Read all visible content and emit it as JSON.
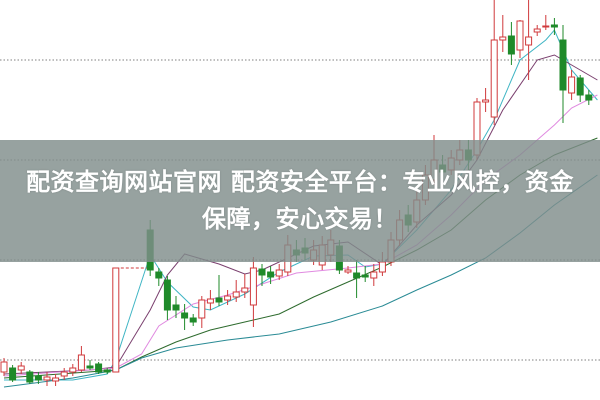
{
  "banner": {
    "line1": "配资查询网站官网 配资安全平台：专业风控，资金",
    "line2": "保障，安心交易！"
  },
  "chart_data": {
    "type": "candlestick",
    "title": "",
    "xlabel": "",
    "ylabel": "",
    "ylim": [
      0,
      40
    ],
    "grid": "horizontal dotted",
    "gridlines": [
      4,
      14,
      24,
      34
    ],
    "colors": {
      "up": "#d0393b",
      "down": "#1f8a2a",
      "ma": [
        "#3fb5c4",
        "#7a3f6e",
        "#e08ae0",
        "#2e6b2e",
        "#2a8b95"
      ],
      "grid": "#999999"
    },
    "candles": [
      [
        2.8,
        3.8,
        4.2,
        2.4
      ],
      [
        3.2,
        2.0,
        3.5,
        1.8
      ],
      [
        3.0,
        3.4,
        3.8,
        2.6
      ],
      [
        2.8,
        1.8,
        3.0,
        1.6
      ],
      [
        2.4,
        2.0,
        2.8,
        1.6
      ],
      [
        2.0,
        2.3,
        2.8,
        1.4
      ],
      [
        1.9,
        2.2,
        2.6,
        1.4
      ],
      [
        2.4,
        2.8,
        3.2,
        2.0
      ],
      [
        2.8,
        3.2,
        3.6,
        2.4
      ],
      [
        3.0,
        4.5,
        5.4,
        2.8
      ],
      [
        3.4,
        3.2,
        4.0,
        3.0
      ],
      [
        3.6,
        2.8,
        3.8,
        2.6
      ],
      [
        3.0,
        2.8,
        3.2,
        2.6
      ],
      [
        2.8,
        13.2,
        13.2,
        2.8
      ],
      null,
      null,
      null,
      [
        17.0,
        13.0,
        18.0,
        12.4
      ],
      [
        12.8,
        12.2,
        13.2,
        11.4
      ],
      [
        12.0,
        9.0,
        12.4,
        8.0
      ],
      [
        9.5,
        9.0,
        10.4,
        8.2
      ],
      [
        8.7,
        8.2,
        9.6,
        7.0
      ],
      [
        8.2,
        7.8,
        8.6,
        7.4
      ],
      [
        8.2,
        10.0,
        10.4,
        7.2
      ],
      [
        9.7,
        10.1,
        11.0,
        9.0
      ],
      [
        10.2,
        9.8,
        12.5,
        9.4
      ],
      [
        10.0,
        10.4,
        11.0,
        9.5
      ],
      [
        10.3,
        10.8,
        12.0,
        9.8
      ],
      [
        10.8,
        11.2,
        12.6,
        10.2
      ],
      [
        9.5,
        13.2,
        14.3,
        7.3
      ],
      [
        13.1,
        12.5,
        13.6,
        11.4
      ],
      [
        12.8,
        12.3,
        13.4,
        11.6
      ],
      [
        12.4,
        13.0,
        13.6,
        12.0
      ],
      [
        12.8,
        15.5,
        16.5,
        12.4
      ],
      [
        15.0,
        14.5,
        16.0,
        13.8
      ],
      [
        15.2,
        14.7,
        16.2,
        14.0
      ],
      [
        14.0,
        15.0,
        16.0,
        13.5
      ],
      [
        13.5,
        15.5,
        16.4,
        13.0
      ],
      [
        14.5,
        16.0,
        17.0,
        13.8
      ],
      [
        15.4,
        13.0,
        16.0,
        12.6
      ],
      [
        12.8,
        13.0,
        13.4,
        12.6
      ],
      [
        12.7,
        12.2,
        14.0,
        10.2
      ],
      [
        12.5,
        12.3,
        13.4,
        11.8
      ],
      [
        12.2,
        12.8,
        13.6,
        11.4
      ],
      [
        12.8,
        13.8,
        14.8,
        12.4
      ],
      [
        13.8,
        16.0,
        16.8,
        13.4
      ],
      [
        16.0,
        18.0,
        19.0,
        15.4
      ],
      [
        18.5,
        17.5,
        19.5,
        16.8
      ],
      [
        17.8,
        20.0,
        21.0,
        17.2
      ],
      [
        20.0,
        22.5,
        23.5,
        19.5
      ],
      [
        22.0,
        24.0,
        26.5,
        21.5
      ],
      [
        23.5,
        22.8,
        24.5,
        22.0
      ],
      [
        23.0,
        24.2,
        25.0,
        22.5
      ],
      [
        24.0,
        25.0,
        26.0,
        23.5
      ],
      [
        25.0,
        24.0,
        26.0,
        23.0
      ],
      [
        24.5,
        29.8,
        30.2,
        24.0
      ],
      [
        29.8,
        30.0,
        31.2,
        28.8
      ],
      [
        28.3,
        36.0,
        40.0,
        27.5
      ],
      [
        36.0,
        36.3,
        38.5,
        34.8
      ],
      [
        36.4,
        34.6,
        37.8,
        33.5
      ],
      [
        35.0,
        37.9,
        38.0,
        34.2
      ],
      [
        35.5,
        36.3,
        40.0,
        32.0
      ],
      [
        36.8,
        37.1,
        37.5,
        36.4
      ],
      [
        37.3,
        37.4,
        38.5,
        37.0
      ],
      [
        37.5,
        37.3,
        38.2,
        36.5
      ],
      [
        36.0,
        31.0,
        37.5,
        27.7
      ],
      [
        30.7,
        32.3,
        33.0,
        30.0
      ],
      [
        32.2,
        30.5,
        32.5,
        29.8
      ],
      [
        30.5,
        30.0,
        31.0,
        29.5
      ]
    ],
    "moving_averages": [
      [
        [
          0,
          2.0
        ],
        [
          8,
          2.0
        ],
        [
          12,
          2.6
        ],
        [
          13,
          4.0
        ],
        [
          17,
          14.5
        ],
        [
          19,
          11.8
        ],
        [
          22,
          9.3
        ],
        [
          24,
          9.0
        ],
        [
          28,
          10.6
        ],
        [
          32,
          12.8
        ],
        [
          36,
          14.4
        ],
        [
          40,
          14.5
        ],
        [
          42,
          13.3
        ],
        [
          44,
          13.6
        ],
        [
          48,
          17.0
        ],
        [
          52,
          21.0
        ],
        [
          55,
          25.0
        ],
        [
          57,
          28.0
        ],
        [
          60,
          34.0
        ],
        [
          63,
          36.0
        ],
        [
          64,
          37.0
        ],
        [
          66,
          33.0
        ],
        [
          68,
          31.0
        ],
        [
          69,
          30.0
        ]
      ],
      [
        [
          0,
          2.6
        ],
        [
          10,
          3.0
        ],
        [
          13,
          3.3
        ],
        [
          17,
          9.0
        ],
        [
          19,
          12.5
        ],
        [
          21,
          14.6
        ],
        [
          25,
          13.6
        ],
        [
          28,
          12.6
        ],
        [
          30,
          13.0
        ],
        [
          36,
          15.4
        ],
        [
          40,
          15.8
        ],
        [
          44,
          13.5
        ],
        [
          48,
          17.5
        ],
        [
          52,
          20.5
        ],
        [
          55,
          24.0
        ],
        [
          58,
          29.0
        ],
        [
          62,
          34.0
        ],
        [
          64,
          34.5
        ],
        [
          66,
          33.5
        ],
        [
          69,
          32.0
        ]
      ],
      [
        [
          0,
          2.4
        ],
        [
          13,
          3.2
        ],
        [
          16,
          4.6
        ],
        [
          18,
          7.4
        ],
        [
          22,
          9.6
        ],
        [
          26,
          10.5
        ],
        [
          30,
          11.6
        ],
        [
          34,
          12.7
        ],
        [
          40,
          13.2
        ],
        [
          44,
          13.6
        ],
        [
          48,
          15.5
        ],
        [
          52,
          18.5
        ],
        [
          56,
          22.0
        ],
        [
          60,
          24.5
        ],
        [
          64,
          27.5
        ],
        [
          66,
          29.2
        ],
        [
          69,
          30.5
        ]
      ],
      [
        [
          0,
          2.2
        ],
        [
          13,
          3.0
        ],
        [
          16,
          4.3
        ],
        [
          20,
          5.8
        ],
        [
          24,
          7.0
        ],
        [
          28,
          7.8
        ],
        [
          32,
          8.6
        ],
        [
          36,
          10.3
        ],
        [
          40,
          11.8
        ],
        [
          44,
          13.3
        ],
        [
          48,
          15.0
        ],
        [
          52,
          17.0
        ],
        [
          56,
          20.0
        ],
        [
          60,
          22.5
        ],
        [
          64,
          24.5
        ],
        [
          69,
          26.2
        ]
      ],
      [
        [
          0,
          1.3
        ],
        [
          8,
          2.2
        ],
        [
          13,
          3.0
        ],
        [
          16,
          4.2
        ],
        [
          20,
          5.2
        ],
        [
          26,
          6.0
        ],
        [
          32,
          6.6
        ],
        [
          38,
          7.8
        ],
        [
          44,
          9.4
        ],
        [
          48,
          11.0
        ],
        [
          52,
          12.5
        ],
        [
          56,
          14.2
        ],
        [
          60,
          16.7
        ],
        [
          64,
          19.5
        ],
        [
          69,
          22.5
        ]
      ]
    ]
  }
}
